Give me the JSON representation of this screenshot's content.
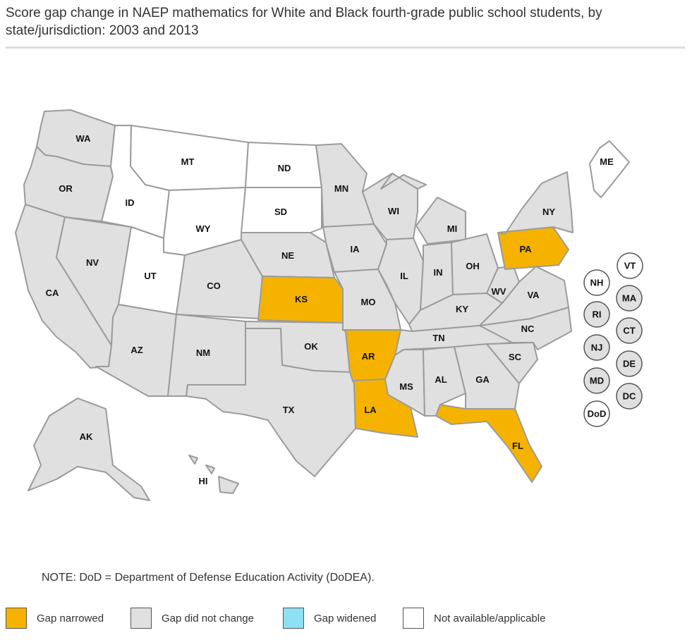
{
  "title": "Score gap change in NAEP mathematics for White and Black fourth-grade public school students, by state/jurisdiction: 2003 and 2013",
  "note": "NOTE: DoD = Department of Defense Education Activity (DoDEA).",
  "colors": {
    "narrowed": "#F5B300",
    "no_change": "#E0E0E0",
    "widened": "#8FE0F2",
    "not_available": "#FFFFFF",
    "border": "#9b9b9b"
  },
  "legend": [
    {
      "key": "narrowed",
      "label": "Gap narrowed"
    },
    {
      "key": "no_change",
      "label": "Gap did not change"
    },
    {
      "key": "widened",
      "label": "Gap widened"
    },
    {
      "key": "not_available",
      "label": "Not available/applicable"
    }
  ],
  "states": {
    "WA": "no_change",
    "OR": "no_change",
    "CA": "no_change",
    "NV": "no_change",
    "ID": "not_available",
    "MT": "not_available",
    "WY": "not_available",
    "UT": "not_available",
    "ND": "not_available",
    "SD": "not_available",
    "CO": "no_change",
    "AZ": "no_change",
    "NM": "no_change",
    "NE": "no_change",
    "KS": "narrowed",
    "OK": "no_change",
    "TX": "no_change",
    "MN": "no_change",
    "IA": "no_change",
    "MO": "no_change",
    "AR": "narrowed",
    "LA": "narrowed",
    "WI": "no_change",
    "IL": "no_change",
    "MI": "no_change",
    "IN": "no_change",
    "OH": "no_change",
    "KY": "no_change",
    "TN": "no_change",
    "MS": "no_change",
    "AL": "no_change",
    "GA": "no_change",
    "FL": "narrowed",
    "SC": "no_change",
    "NC": "no_change",
    "VA": "no_change",
    "WV": "no_change",
    "PA": "narrowed",
    "NY": "no_change",
    "ME": "not_available",
    "AK": "no_change",
    "HI": "no_change"
  },
  "small_states": [
    {
      "abbr": "VT",
      "status": "not_available"
    },
    {
      "abbr": "NH",
      "status": "not_available"
    },
    {
      "abbr": "MA",
      "status": "no_change"
    },
    {
      "abbr": "RI",
      "status": "no_change"
    },
    {
      "abbr": "CT",
      "status": "no_change"
    },
    {
      "abbr": "NJ",
      "status": "no_change"
    },
    {
      "abbr": "DE",
      "status": "no_change"
    },
    {
      "abbr": "MD",
      "status": "no_change"
    },
    {
      "abbr": "DC",
      "status": "no_change"
    },
    {
      "abbr": "DoD",
      "status": "not_available"
    }
  ]
}
